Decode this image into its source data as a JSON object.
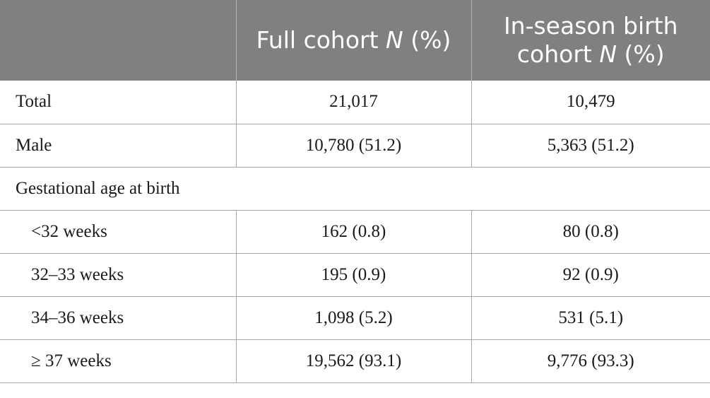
{
  "header": {
    "col1": "",
    "col2_prefix": "Full cohort ",
    "col2_n": "N",
    "col2_suffix": " (%)",
    "col3_line1": "In-season birth",
    "col3_prefix": "cohort ",
    "col3_n": "N",
    "col3_suffix": " (%)"
  },
  "rows": [
    {
      "label": "Total",
      "full": "21,017",
      "inseason": "10,479"
    },
    {
      "label": "Male",
      "full": "10,780 (51.2)",
      "inseason": "5,363 (51.2)"
    }
  ],
  "section": {
    "label": "Gestational age at birth"
  },
  "sub_rows": [
    {
      "label": "<32 weeks",
      "full": "162 (0.8)",
      "inseason": "80 (0.8)"
    },
    {
      "label": "32–33 weeks",
      "full": "195 (0.9)",
      "inseason": "92 (0.9)"
    },
    {
      "label": "34–36 weeks",
      "full": "1,098 (5.2)",
      "inseason": "531 (5.1)"
    },
    {
      "label": "≥ 37 weeks",
      "full": "19,562 (93.1)",
      "inseason": "9,776 (93.3)"
    }
  ]
}
